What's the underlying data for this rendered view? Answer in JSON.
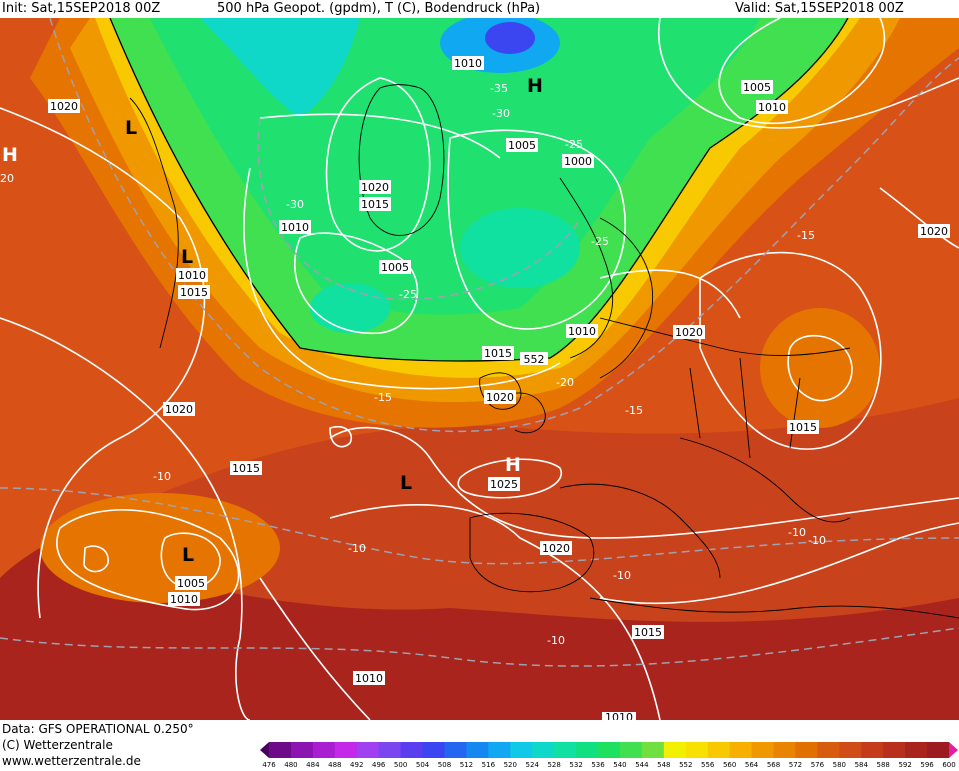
{
  "header": {
    "init": "Init: Sat,15SEP2018 00Z",
    "title": "500 hPa Geopot. (gpdm), T (C), Bodendruck (hPa)",
    "valid": "Valid: Sat,15SEP2018 00Z"
  },
  "footer": {
    "data_line": "Data: GFS OPERATIONAL 0.250°",
    "copyright": "(C) Wetterzentrale",
    "url": "www.wetterzentrale.de"
  },
  "colorbar": {
    "ticks": [
      "476",
      "480",
      "484",
      "488",
      "492",
      "496",
      "500",
      "504",
      "508",
      "512",
      "516",
      "520",
      "524",
      "528",
      "532",
      "536",
      "540",
      "544",
      "548",
      "552",
      "556",
      "560",
      "564",
      "568",
      "572",
      "576",
      "580",
      "584",
      "588",
      "592",
      "596",
      "600"
    ],
    "colors": [
      "#4a0060",
      "#6c0a8a",
      "#8c14b0",
      "#a81ed0",
      "#c428e8",
      "#a040f0",
      "#7a46f0",
      "#5a3ef0",
      "#3c46f0",
      "#2466f0",
      "#1488f0",
      "#10a8f0",
      "#10c8e8",
      "#10d8c8",
      "#10e0a0",
      "#10e080",
      "#20e060",
      "#40e050",
      "#70e040",
      "#f0f000",
      "#f8e000",
      "#f8c800",
      "#f8b000",
      "#f09800",
      "#e88400",
      "#e07000",
      "#d85c10",
      "#d04c18",
      "#c43c1c",
      "#b8301c",
      "#a8241c",
      "#9c1c20",
      "#e020a0"
    ]
  },
  "pressure_labels": [
    {
      "name": "isobar-label",
      "text": "1020"
    },
    {
      "name": "isobar-label",
      "text": "1010"
    },
    {
      "name": "isobar-label",
      "text": "1005"
    },
    {
      "name": "isobar-label",
      "text": "1010"
    },
    {
      "name": "isobar-label",
      "text": "1020"
    },
    {
      "name": "isobar-label",
      "text": "1015"
    },
    {
      "name": "isobar-label",
      "text": "1010"
    },
    {
      "name": "isobar-label",
      "text": "1005"
    },
    {
      "name": "isobar-label",
      "text": "1000"
    },
    {
      "name": "isobar-label",
      "text": "1010"
    },
    {
      "name": "isobar-label",
      "text": "1015"
    },
    {
      "name": "isobar-label",
      "text": "1010"
    },
    {
      "name": "isobar-label",
      "text": "1015"
    },
    {
      "name": "isobar-label",
      "text": "1020"
    },
    {
      "name": "isobar-label",
      "text": "1020"
    },
    {
      "name": "isobar-label",
      "text": "1015"
    },
    {
      "name": "isobar-label",
      "text": "1025"
    },
    {
      "name": "isobar-label",
      "text": "1020"
    },
    {
      "name": "isobar-label",
      "text": "1005"
    },
    {
      "name": "isobar-label",
      "text": "1010"
    },
    {
      "name": "isobar-label",
      "text": "1020"
    },
    {
      "name": "isobar-label",
      "text": "1015"
    },
    {
      "name": "isobar-label",
      "text": "1020"
    },
    {
      "name": "isobar-label",
      "text": "1015"
    },
    {
      "name": "isobar-label",
      "text": "1005"
    },
    {
      "name": "isobar-label",
      "text": "1010"
    }
  ],
  "temp_labels": [
    "-35",
    "-30",
    "-25",
    "-30",
    "-25",
    "-25",
    "-20",
    "-15",
    "-15",
    "-10",
    "-10",
    "-10",
    "-10",
    "-10",
    "-10",
    "-15"
  ],
  "pressure_centers": [
    {
      "symbol": "H"
    },
    {
      "symbol": "H"
    },
    {
      "symbol": "H"
    },
    {
      "symbol": "L"
    },
    {
      "symbol": "L"
    },
    {
      "symbol": "L"
    },
    {
      "symbol": "L"
    }
  ],
  "extra_labels": {
    "left_edge_value": "20",
    "center_552": "552",
    "bottom_cut": "1010"
  }
}
